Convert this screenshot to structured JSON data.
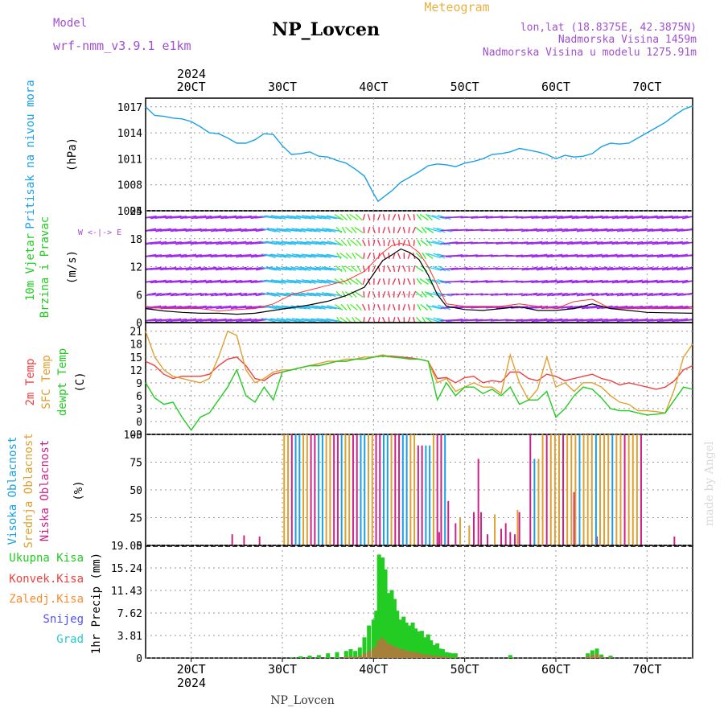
{
  "header": {
    "model_label": "Model",
    "model_name": "wrf-nmm_v3.9.1 e1km",
    "station": "NP_Lovcen",
    "meteogram_label": "Meteogram",
    "coords": "lon,lat (18.8375E, 42.3875N)",
    "altitude": "Nadmorska Visina 1459m",
    "model_altitude": "Nadmorska Visina u modelu 1275.91m",
    "watermark": "made by Angel",
    "footer_station": "NP_Lovcen"
  },
  "colors": {
    "pressure": "#1aa0e6",
    "wind_speed": "#000000",
    "gust": "#ff3030",
    "t2m": "#ee4040",
    "sfc": "#e0a030",
    "dewpt": "#22cc22",
    "high_cloud": "#1a9fe6",
    "mid_cloud": "#e0a030",
    "low_cloud": "#cc2288",
    "precip_total": "#22cc22",
    "precip_conv": "#ee4040",
    "frozen": "#ff8c2a",
    "snow": "#5050ff",
    "hail": "#22cccc"
  },
  "time_axis": {
    "top_year": "2024",
    "bottom_year": "2024",
    "ticks": [
      "20CT",
      "30CT",
      "40CT",
      "50CT",
      "60CT",
      "70CT"
    ]
  },
  "panels": {
    "pressure": {
      "label1": "Pritisak na nivou mora",
      "unit": "(hPa)"
    },
    "wind": {
      "label1": "10m Vjetar",
      "label2": "Brzina i Pravac",
      "unit": "(m/s)",
      "compass": "W <-|-> E"
    },
    "temp": {
      "label1": "2m Temp",
      "label2": "SFC Temp",
      "label3": "dewpt Temp",
      "unit": "(C)"
    },
    "cloud": {
      "label1": "Visoka Oblacnost",
      "label2": "Srednja Oblacnost",
      "label3": "Niska Oblacnost",
      "unit": "(%)"
    },
    "precip": {
      "unit": "1hr Precip (mm)",
      "legend": [
        "Ukupna Kisa",
        "Konvek.Kisa",
        "Zaledj.Kisa",
        "Snijeg",
        "Grad"
      ]
    }
  },
  "chart_data": [
    {
      "type": "line",
      "name_hint": "pressure",
      "ylim": [
        1005,
        1018
      ],
      "yticks": [
        "1005",
        "1008",
        "1011",
        "1014",
        "1017"
      ],
      "x_range": [
        15,
        75
      ],
      "x": [
        15,
        16,
        17,
        18,
        19,
        20,
        21,
        22,
        23,
        24,
        25,
        26,
        27,
        28,
        29,
        30,
        31,
        32,
        33,
        34,
        35,
        36,
        37,
        38,
        39,
        40,
        40.5,
        41,
        42,
        43,
        44,
        45,
        46,
        47,
        48,
        49,
        50,
        51,
        52,
        53,
        54,
        55,
        56,
        57,
        58,
        59,
        60,
        61,
        62,
        63,
        64,
        65,
        66,
        67,
        68,
        69,
        70,
        71,
        72,
        73,
        74,
        75
      ],
      "values": [
        1017,
        1016,
        1015.9,
        1015.7,
        1015.6,
        1015.3,
        1014.7,
        1014,
        1013.9,
        1013.4,
        1012.8,
        1012.8,
        1013.2,
        1013.9,
        1013.8,
        1012.5,
        1011.5,
        1011.6,
        1011.8,
        1011.3,
        1011.2,
        1010.8,
        1010.5,
        1009.8,
        1009,
        1007,
        1006.1,
        1006.5,
        1007.3,
        1008.3,
        1008.9,
        1009.5,
        1010.2,
        1010.4,
        1010.3,
        1010.1,
        1010.5,
        1010.7,
        1011,
        1011.5,
        1011.6,
        1011.8,
        1012.2,
        1012,
        1011.8,
        1011.5,
        1011,
        1011.4,
        1011.2,
        1011.3,
        1011.6,
        1012.4,
        1012.8,
        1012.7,
        1012.8,
        1013.4,
        1014,
        1014.6,
        1015.2,
        1016,
        1016.7,
        1017.1
      ]
    },
    {
      "type": "line",
      "name_hint": "wind",
      "ylim": [
        0,
        24
      ],
      "yticks": [
        "0",
        "6",
        "12",
        "18",
        "24"
      ],
      "x_range": [
        15,
        75
      ],
      "series": [
        {
          "x": [
            15,
            17,
            19,
            21,
            23,
            25,
            27,
            29,
            31,
            33,
            35,
            37,
            39,
            41,
            42,
            43,
            44,
            45,
            46,
            47,
            48,
            50,
            52,
            54,
            56,
            58,
            60,
            62,
            64,
            66,
            68,
            70,
            72,
            75
          ],
          "values": [
            3,
            2.5,
            2.2,
            2,
            2,
            1.8,
            2,
            2.6,
            3.2,
            3.8,
            4.6,
            5.8,
            7.6,
            13.3,
            14.5,
            15.8,
            15,
            13.5,
            10.2,
            6,
            3.5,
            2.8,
            2.6,
            3,
            3.4,
            2.6,
            2.6,
            3,
            4,
            3,
            2.6,
            2.2,
            2.1,
            2
          ]
        },
        {
          "x": [
            15,
            17,
            19,
            21,
            23,
            25,
            27,
            29,
            31,
            33,
            35,
            37,
            39,
            41,
            42,
            43,
            44,
            45,
            46,
            47,
            48,
            50,
            52,
            54,
            56,
            58,
            60,
            62,
            64,
            66,
            68,
            70,
            72,
            75
          ],
          "values": [
            3.5,
            3,
            3,
            3,
            2.5,
            2.8,
            3,
            4,
            6,
            7,
            8,
            9,
            11,
            15,
            16.5,
            17,
            16.5,
            15,
            12,
            8,
            4,
            3.5,
            3.5,
            3.5,
            4,
            3.5,
            3,
            4.5,
            5,
            3,
            3,
            3,
            3,
            3
          ]
        }
      ]
    },
    {
      "type": "line",
      "name_hint": "temperature",
      "ylim": [
        -3,
        23
      ],
      "yticks": [
        "-3",
        "0",
        "3",
        "6",
        "9",
        "12",
        "15",
        "18",
        "21"
      ],
      "x_range": [
        15,
        75
      ],
      "series": [
        {
          "x": [
            15,
            16,
            17,
            18,
            19,
            20,
            21,
            22,
            23,
            24,
            25,
            26,
            27,
            28,
            29,
            30,
            31,
            32,
            33,
            34,
            35,
            36,
            37,
            38,
            39,
            40,
            41,
            42,
            43,
            44,
            45,
            46,
            47,
            48,
            49,
            50,
            51,
            52,
            53,
            54,
            55,
            56,
            57,
            58,
            59,
            60,
            61,
            62,
            63,
            64,
            65,
            66,
            67,
            68,
            69,
            70,
            71,
            72,
            73,
            74,
            75
          ],
          "values": [
            14,
            13,
            11,
            10,
            10.5,
            10.5,
            10.5,
            11,
            13,
            14.5,
            15,
            13,
            10,
            9.5,
            11,
            11.5,
            12,
            12.5,
            13,
            13,
            13.5,
            14,
            14,
            14.5,
            14.5,
            15,
            15.3,
            15.2,
            15,
            14.8,
            14.5,
            14,
            10,
            10.2,
            9,
            10.2,
            10.5,
            9,
            9.5,
            9.2,
            11.5,
            11.5,
            10,
            9.5,
            11,
            10.5,
            9.5,
            10,
            10.5,
            11,
            10,
            9.5,
            8.5,
            9,
            8.5,
            8,
            7.5,
            8,
            9.5,
            12,
            13
          ]
        },
        {
          "x": [
            15,
            16,
            17,
            18,
            19,
            20,
            21,
            22,
            23,
            24,
            25,
            26,
            27,
            28,
            29,
            30,
            31,
            32,
            33,
            34,
            35,
            36,
            37,
            38,
            39,
            40,
            41,
            42,
            43,
            44,
            45,
            46,
            47,
            48,
            49,
            50,
            51,
            52,
            53,
            54,
            55,
            56,
            57,
            58,
            59,
            60,
            61,
            62,
            63,
            64,
            65,
            66,
            67,
            68,
            69,
            70,
            71,
            72,
            73,
            74,
            75
          ],
          "values": [
            21,
            15,
            12,
            10.5,
            10,
            9.5,
            9,
            10,
            15,
            21,
            20,
            12,
            9,
            10,
            11.5,
            12,
            12,
            12.5,
            13,
            13.5,
            14,
            14,
            14.5,
            14.5,
            15,
            15,
            15.5,
            15,
            14.8,
            14.5,
            14.5,
            14,
            9,
            10,
            7,
            8,
            9,
            8,
            8,
            6.5,
            15.5,
            9,
            5,
            7.5,
            15,
            8,
            9,
            7,
            9,
            9,
            8,
            6,
            4.5,
            4,
            2.5,
            2.5,
            2.3,
            2,
            7.5,
            15,
            18
          ]
        },
        {
          "x": [
            15,
            16,
            17,
            18,
            19,
            20,
            21,
            22,
            23,
            24,
            25,
            26,
            27,
            28,
            29,
            30,
            31,
            32,
            33,
            34,
            35,
            36,
            37,
            38,
            39,
            40,
            41,
            42,
            43,
            44,
            45,
            46,
            47,
            48,
            49,
            50,
            51,
            52,
            53,
            54,
            55,
            56,
            57,
            58,
            59,
            60,
            61,
            62,
            63,
            64,
            65,
            66,
            67,
            68,
            69,
            70,
            71,
            72,
            73,
            74,
            75
          ],
          "values": [
            9,
            5.5,
            4,
            4.5,
            1,
            -2,
            1,
            2,
            5,
            8,
            12,
            6,
            4.5,
            8,
            5,
            11.5,
            12,
            12.5,
            13,
            13,
            13.5,
            14,
            14,
            14.5,
            14.5,
            15,
            15.2,
            15,
            14.8,
            14.5,
            14.5,
            14,
            5,
            9,
            6,
            8,
            8,
            6.5,
            7.5,
            6,
            8,
            4,
            5,
            5,
            7,
            1,
            3,
            6,
            8,
            7.5,
            5.5,
            3,
            2.5,
            2.5,
            2,
            1.5,
            1.7,
            2,
            5,
            8,
            7.5
          ]
        }
      ]
    },
    {
      "type": "bar",
      "name_hint": "cloud cover",
      "ylim": [
        0,
        100
      ],
      "yticks": [
        "0",
        "25",
        "50",
        "75",
        "100"
      ],
      "x_range": [
        15,
        75
      ]
    },
    {
      "type": "bar",
      "name_hint": "precipitation",
      "ylim": [
        0,
        19.05
      ],
      "yticks": [
        "0",
        "3.81",
        "7.62",
        "11.43",
        "15.24",
        "19.05"
      ],
      "x_range": [
        15,
        75
      ],
      "x": [
        31,
        32,
        33,
        34,
        35,
        36,
        37,
        37.5,
        38,
        38.5,
        39,
        39.5,
        40,
        40.3,
        40.6,
        41,
        41.3,
        41.6,
        42,
        42.3,
        42.6,
        43,
        43.3,
        43.6,
        44,
        44.3,
        44.6,
        45,
        45.3,
        45.6,
        46,
        46.3,
        46.6,
        47,
        47.3,
        47.6,
        48,
        48.3,
        48.6,
        49,
        55,
        63.5,
        64,
        64.5,
        65,
        66
      ],
      "values": [
        0.1,
        0.3,
        0.4,
        0.5,
        0.8,
        1,
        1.2,
        1.5,
        1.2,
        1.8,
        3.5,
        5.5,
        6.5,
        8,
        17.5,
        17,
        15,
        11,
        11.5,
        10,
        8,
        6.5,
        7,
        6,
        5.5,
        6,
        5,
        4.5,
        4.6,
        3.5,
        4,
        3,
        2.2,
        2.5,
        1.6,
        1.5,
        1,
        0.9,
        0.8,
        0.8,
        0.5,
        0.8,
        1.3,
        1.6,
        0.6,
        0.4
      ],
      "conv_values": [
        0,
        0,
        0,
        0,
        0,
        0,
        0.2,
        0.3,
        0.2,
        0.4,
        0.8,
        1.2,
        1.5,
        2,
        3,
        3.5,
        3,
        2.5,
        2.2,
        2,
        1.8,
        1.5,
        1.5,
        1.2,
        1.2,
        1,
        1,
        0.8,
        0.8,
        0.6,
        0.6,
        0.5,
        0.4,
        0.4,
        0.3,
        0.3,
        0.2,
        0.2,
        0.1,
        0.1,
        0,
        0.3,
        0.5,
        0.7,
        0.2,
        0.1
      ]
    }
  ]
}
